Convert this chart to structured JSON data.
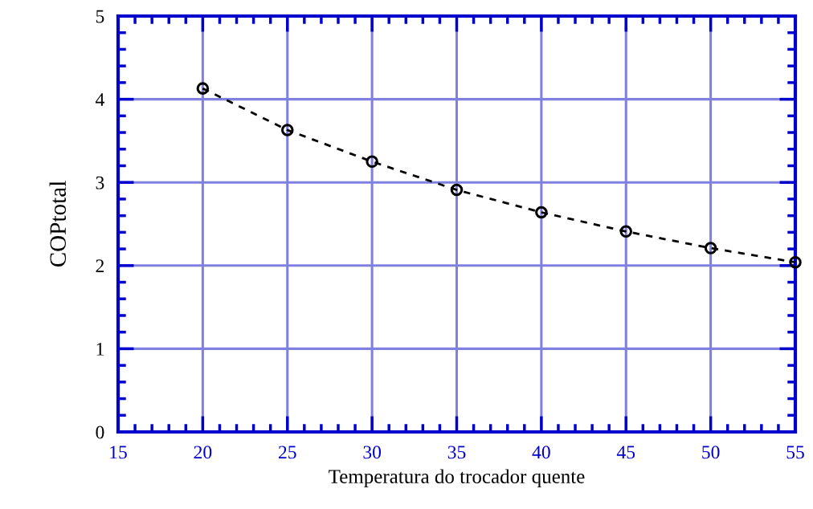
{
  "chart_data": {
    "type": "line",
    "xlabel": "Temperatura do trocador quente",
    "ylabel": "COPtotal",
    "x": [
      20,
      25,
      30,
      35,
      40,
      45,
      50,
      55
    ],
    "series": [
      {
        "color": "#000000",
        "values": [
          4.13,
          3.63,
          3.25,
          2.91,
          2.64,
          2.41,
          2.21,
          2.04
        ]
      }
    ],
    "xlim": [
      15,
      55
    ],
    "xticks": [
      15,
      20,
      25,
      30,
      35,
      40,
      45,
      50,
      55
    ],
    "ylim": [
      0,
      5
    ],
    "yticks": [
      0,
      1,
      2,
      3,
      4,
      5
    ],
    "grid": true,
    "marker": "circle",
    "line_style": "dashed",
    "legend": false
  }
}
